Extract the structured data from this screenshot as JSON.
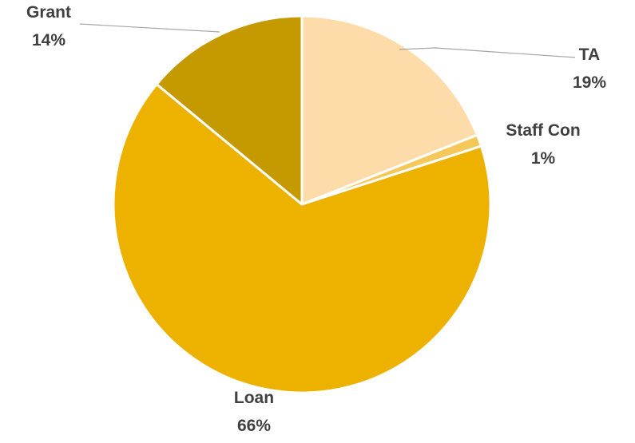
{
  "chart_data": {
    "type": "pie",
    "categories": [
      "TA",
      "Staff Con",
      "Loan",
      "Grant"
    ],
    "values": [
      19,
      1,
      66,
      14
    ],
    "value_labels": [
      "19%",
      "1%",
      "66%",
      "14%"
    ],
    "colors": [
      "#FDDCA9",
      "#F5C85A",
      "#EDB100",
      "#C59A00"
    ],
    "title": "",
    "legend": "none"
  }
}
